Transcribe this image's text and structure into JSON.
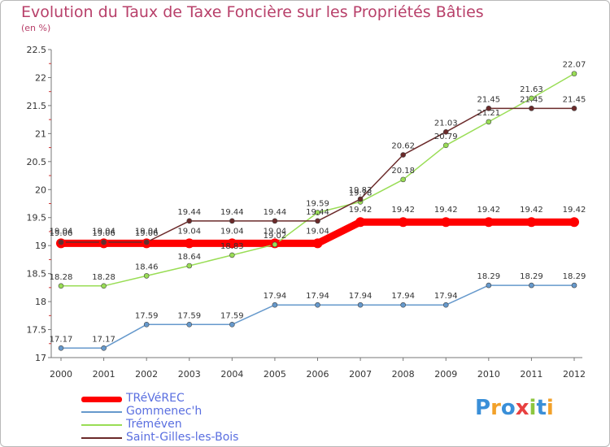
{
  "header": {
    "title": "Evolution du Taux de Taxe Foncière sur les Propriétés Bâties",
    "unit": "(en %)"
  },
  "chart_data": {
    "type": "line",
    "title": "Evolution du Taux de Taxe Foncière sur les Propriétés Bâties",
    "ylabel": "(en %)",
    "xlabel": "",
    "x": [
      "2000",
      "2001",
      "2002",
      "2003",
      "2004",
      "2005",
      "2006",
      "2007",
      "2008",
      "2009",
      "2010",
      "2011",
      "2012"
    ],
    "ylim": [
      17,
      22.5
    ],
    "yticks": [
      "17",
      "17.5",
      "18",
      "18.5",
      "19",
      "19.5",
      "20",
      "20.5",
      "21",
      "21.5",
      "22",
      "22.5"
    ],
    "series": [
      {
        "name": "TRéVéREC",
        "color": "#ff0000",
        "values": [
          19.04,
          19.04,
          19.04,
          19.04,
          19.04,
          19.04,
          19.04,
          19.42,
          19.42,
          19.42,
          19.42,
          19.42,
          19.42
        ]
      },
      {
        "name": "Gommenec'h",
        "color": "#6699cc",
        "values": [
          17.17,
          17.17,
          17.59,
          17.59,
          17.59,
          17.94,
          17.94,
          17.94,
          17.94,
          17.94,
          18.29,
          18.29,
          18.29
        ]
      },
      {
        "name": "Tréméven",
        "color": "#99dd55",
        "values": [
          18.28,
          18.28,
          18.46,
          18.64,
          18.83,
          19.02,
          19.59,
          19.78,
          20.18,
          20.79,
          21.21,
          21.63,
          22.07
        ]
      },
      {
        "name": "Saint-Gilles-les-Bois",
        "color": "#6b2a2a",
        "values": [
          19.06,
          19.06,
          19.06,
          19.44,
          19.44,
          19.44,
          19.44,
          19.83,
          20.62,
          21.03,
          21.45,
          21.45,
          21.45
        ]
      }
    ]
  },
  "logo": {
    "letters": [
      "P",
      "r",
      "o",
      "x",
      "i",
      "t",
      "i"
    ]
  }
}
